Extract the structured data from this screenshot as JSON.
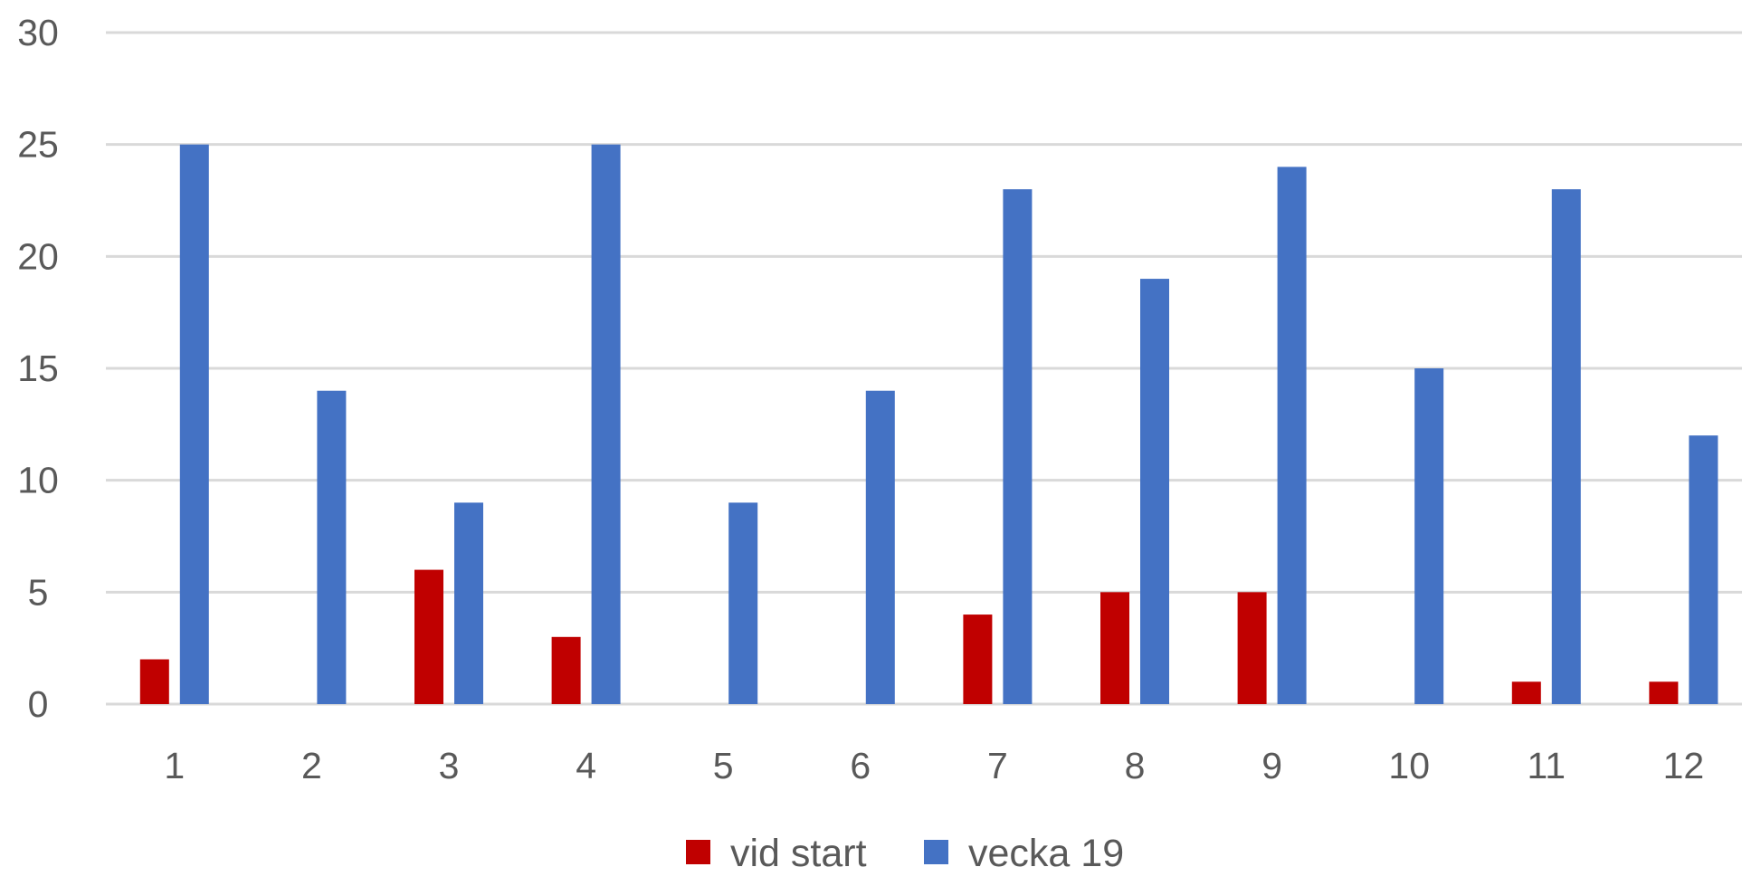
{
  "chart_data": {
    "type": "bar",
    "title": "",
    "xlabel": "",
    "ylabel": "",
    "categories": [
      "1",
      "2",
      "3",
      "4",
      "5",
      "6",
      "7",
      "8",
      "9",
      "10",
      "11",
      "12"
    ],
    "series": [
      {
        "name": "vid start",
        "color": "#C00000",
        "values": [
          2,
          0,
          6,
          3,
          0,
          0,
          4,
          5,
          5,
          0,
          1,
          1
        ]
      },
      {
        "name": "vecka 19",
        "color": "#4472C4",
        "values": [
          25,
          14,
          9,
          25,
          9,
          14,
          23,
          19,
          24,
          15,
          23,
          12
        ]
      }
    ],
    "ylim": [
      0,
      30
    ],
    "yticks": [
      0,
      5,
      10,
      15,
      20,
      25,
      30
    ],
    "grid": true,
    "gridline_color": "#D9D9D9",
    "legend_position": "bottom"
  }
}
